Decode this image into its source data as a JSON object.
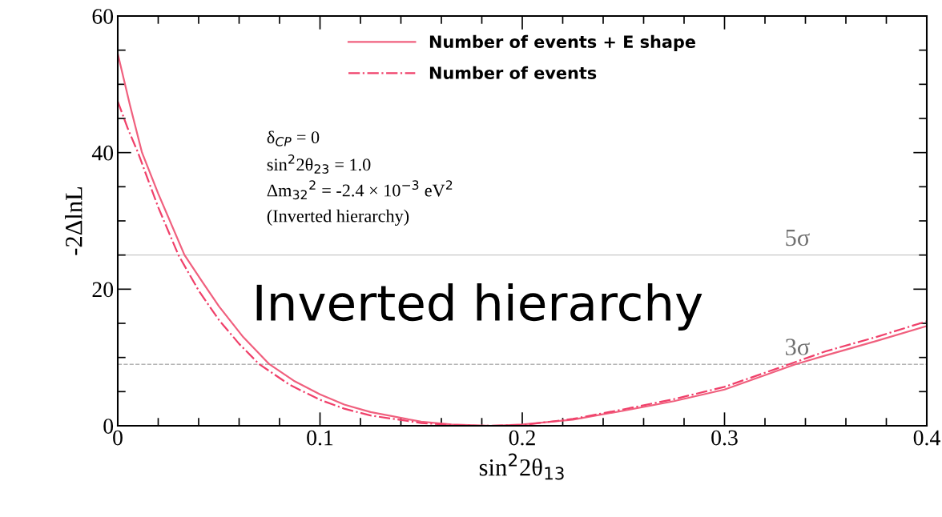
{
  "chart_data": {
    "type": "line",
    "xlabel": "sin$^{2}$2θ$_{13}$",
    "ylabel": "-2ΔlnL",
    "xlim": [
      0,
      0.4
    ],
    "ylim": [
      0,
      60
    ],
    "xticks": [
      0,
      {
        "value": 0.02,
        "label": null
      },
      {
        "value": 0.04,
        "label": null
      },
      {
        "value": 0.06,
        "label": null
      },
      {
        "value": 0.08,
        "label": null
      },
      0.1,
      {
        "value": 0.12,
        "label": null
      },
      {
        "value": 0.14,
        "label": null
      },
      {
        "value": 0.16,
        "label": null
      },
      {
        "value": 0.18,
        "label": null
      },
      0.2,
      {
        "value": 0.22,
        "label": null
      },
      {
        "value": 0.24,
        "label": null
      },
      {
        "value": 0.26,
        "label": null
      },
      {
        "value": 0.28,
        "label": null
      },
      0.3,
      {
        "value": 0.32,
        "label": null
      },
      {
        "value": 0.34,
        "label": null
      },
      {
        "value": 0.36,
        "label": null
      },
      {
        "value": 0.38,
        "label": null
      },
      0.4
    ],
    "yticks": [
      0,
      {
        "value": 5,
        "label": null
      },
      {
        "value": 10,
        "label": null
      },
      {
        "value": 15,
        "label": null
      },
      20,
      {
        "value": 25,
        "label": null
      },
      {
        "value": 30,
        "label": null
      },
      {
        "value": 35,
        "label": null
      },
      40,
      {
        "value": 45,
        "label": null
      },
      {
        "value": 50,
        "label": null
      },
      {
        "value": 55,
        "label": null
      },
      60
    ],
    "legend": "top",
    "grid": false,
    "series": [
      {
        "name": "Number of events + E shape",
        "color": "#f0607e",
        "line_style": "solid",
        "x": [
          0,
          0.006,
          0.012,
          0.02,
          0.033,
          0.042,
          0.05,
          0.062,
          0.075,
          0.087,
          0.1,
          0.112,
          0.125,
          0.15,
          0.165,
          0.185,
          0.2,
          0.225,
          0.25,
          0.275,
          0.3,
          0.335,
          0.35,
          0.375,
          0.4
        ],
        "values": [
          54.5,
          47,
          40,
          34,
          25,
          21,
          17.5,
          13,
          9,
          6.6,
          4.6,
          3.1,
          2,
          0.6,
          0.2,
          0,
          0.2,
          0.9,
          2.2,
          3.6,
          5.3,
          9,
          10.3,
          12.4,
          14.6
        ]
      },
      {
        "name": "Number of events",
        "color": "#f0406a",
        "line_style": "dashdot",
        "x": [
          0,
          0.005,
          0.01,
          0.02,
          0.03,
          0.04,
          0.05,
          0.06,
          0.07,
          0.085,
          0.1,
          0.112,
          0.125,
          0.15,
          0.165,
          0.18,
          0.2,
          0.225,
          0.25,
          0.275,
          0.3,
          0.33,
          0.35,
          0.375,
          0.4
        ],
        "values": [
          47.5,
          43.5,
          40,
          32,
          25,
          19.8,
          15.5,
          12,
          9,
          6,
          3.8,
          2.5,
          1.5,
          0.4,
          0.1,
          0,
          0.1,
          1,
          2.4,
          3.9,
          5.7,
          8.8,
          10.9,
          13,
          15.3
        ]
      }
    ],
    "ref_lines": [
      {
        "axis": "y",
        "value": 25,
        "label": "5σ",
        "color": "#c8c8c8",
        "line_style": "solid"
      },
      {
        "axis": "y",
        "value": 9,
        "label": "3σ",
        "color": "#b4b4b4",
        "line_style": "dashed"
      }
    ],
    "annotations": [
      "δ$_{CP}$ = 0",
      "sin$^{2}$2θ$_{23}$ = 1.0",
      "Δm$_{32}$$^{2}$ = -2.4 × 10$^{−3}$ eV$^{2}$",
      "(Inverted hierarchy)",
      "Inverted hierarchy"
    ]
  }
}
